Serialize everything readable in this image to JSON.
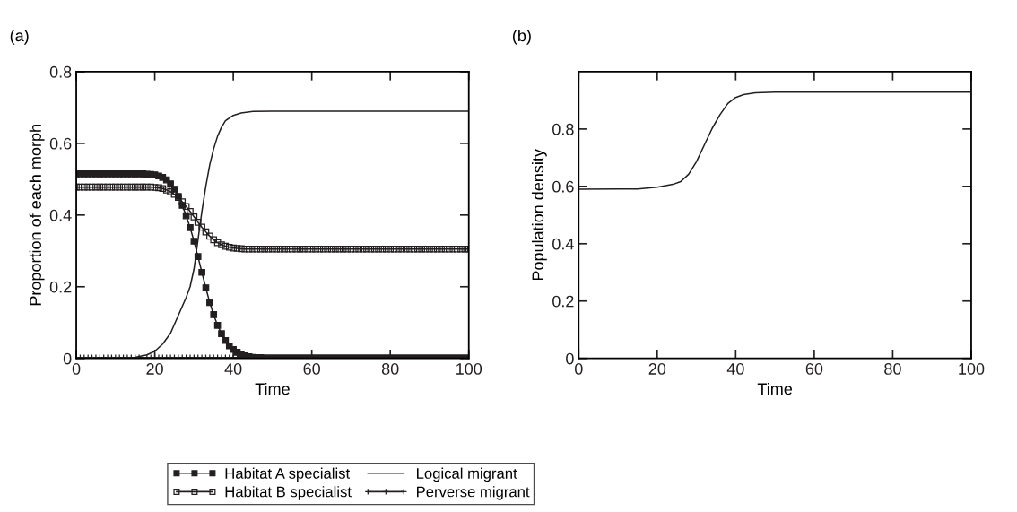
{
  "chart_data": [
    {
      "type": "line",
      "title": "(a)",
      "xlabel": "Time",
      "ylabel": "Proportion of each morph",
      "xlim": [
        0,
        100
      ],
      "ylim": [
        0,
        0.8
      ],
      "xticks": [
        0,
        20,
        40,
        60,
        80,
        100
      ],
      "yticks": [
        0,
        0.2,
        0.4,
        0.6,
        0.8
      ],
      "grid": false,
      "legend": "bottom",
      "x": [
        0,
        1,
        2,
        3,
        4,
        5,
        6,
        7,
        8,
        9,
        10,
        11,
        12,
        13,
        14,
        15,
        16,
        17,
        18,
        19,
        20,
        21,
        22,
        23,
        24,
        25,
        26,
        27,
        28,
        29,
        30,
        31,
        32,
        33,
        34,
        35,
        36,
        37,
        38,
        39,
        40,
        41,
        42,
        43,
        44,
        45,
        46,
        47,
        48,
        49,
        50,
        51,
        52,
        53,
        54,
        55,
        56,
        57,
        58,
        59,
        60,
        61,
        62,
        63,
        64,
        65,
        66,
        67,
        68,
        69,
        70,
        71,
        72,
        73,
        74,
        75,
        76,
        77,
        78,
        79,
        80,
        81,
        82,
        83,
        84,
        85,
        86,
        87,
        88,
        89,
        90,
        91,
        92,
        93,
        94,
        95,
        96,
        97,
        98,
        99,
        100
      ],
      "series": [
        {
          "name": "Habitat A specialist",
          "color": "#231f20",
          "marker": "square",
          "values": [
            0.515,
            0.515,
            0.515,
            0.515,
            0.515,
            0.515,
            0.515,
            0.515,
            0.515,
            0.515,
            0.515,
            0.515,
            0.515,
            0.515,
            0.515,
            0.515,
            0.515,
            0.515,
            0.514,
            0.513,
            0.512,
            0.509,
            0.505,
            0.498,
            0.487,
            0.472,
            0.452,
            0.427,
            0.398,
            0.365,
            0.327,
            0.284,
            0.24,
            0.197,
            0.156,
            0.122,
            0.092,
            0.069,
            0.05,
            0.035,
            0.025,
            0.017,
            0.011,
            0.007,
            0.005,
            0.003,
            0.002,
            0.002,
            0.001,
            0.001,
            0.001,
            0.001,
            0.001,
            0.001,
            0.001,
            0.001,
            0.001,
            0.001,
            0.001,
            0.001,
            0.001,
            0.001,
            0.001,
            0.001,
            0.001,
            0.001,
            0.001,
            0.001,
            0.001,
            0.001,
            0.001,
            0.001,
            0.001,
            0.001,
            0.001,
            0.001,
            0.001,
            0.001,
            0.001,
            0.001,
            0.001,
            0.001,
            0.001,
            0.001,
            0.001,
            0.001,
            0.001,
            0.001,
            0.001,
            0.001,
            0.001,
            0.001,
            0.001,
            0.001,
            0.001,
            0.001,
            0.001,
            0.001,
            0.001,
            0.001,
            0.001
          ]
        },
        {
          "name": "Habitat B specialist",
          "color": "#231f20",
          "marker": "square-open",
          "values": [
            0.478,
            0.478,
            0.478,
            0.478,
            0.478,
            0.478,
            0.478,
            0.478,
            0.478,
            0.478,
            0.478,
            0.478,
            0.478,
            0.478,
            0.478,
            0.478,
            0.478,
            0.478,
            0.478,
            0.478,
            0.477,
            0.476,
            0.474,
            0.47,
            0.465,
            0.458,
            0.449,
            0.437,
            0.424,
            0.41,
            0.395,
            0.38,
            0.366,
            0.353,
            0.341,
            0.331,
            0.323,
            0.317,
            0.313,
            0.31,
            0.308,
            0.307,
            0.306,
            0.305,
            0.305,
            0.305,
            0.305,
            0.305,
            0.305,
            0.305,
            0.305,
            0.305,
            0.305,
            0.305,
            0.305,
            0.305,
            0.305,
            0.305,
            0.305,
            0.305,
            0.305,
            0.305,
            0.305,
            0.305,
            0.305,
            0.305,
            0.305,
            0.305,
            0.305,
            0.305,
            0.305,
            0.305,
            0.305,
            0.305,
            0.305,
            0.305,
            0.305,
            0.305,
            0.305,
            0.305,
            0.305,
            0.305,
            0.305,
            0.305,
            0.305,
            0.305,
            0.305,
            0.305,
            0.305,
            0.305,
            0.305,
            0.305,
            0.305,
            0.305,
            0.305,
            0.305,
            0.305,
            0.305,
            0.305,
            0.305,
            0.305
          ]
        },
        {
          "name": "Logical migrant",
          "color": "#231f20",
          "marker": "none",
          "x": [
            0,
            10,
            15,
            18,
            20,
            22,
            24,
            26,
            28,
            29,
            30,
            31,
            32,
            33,
            34,
            35,
            36,
            37,
            38,
            40,
            42,
            45,
            50,
            100
          ],
          "values": [
            0,
            0,
            0.003,
            0.01,
            0.02,
            0.04,
            0.07,
            0.12,
            0.17,
            0.2,
            0.25,
            0.33,
            0.41,
            0.48,
            0.54,
            0.585,
            0.62,
            0.645,
            0.663,
            0.678,
            0.685,
            0.689,
            0.69,
            0.69
          ]
        },
        {
          "name": "Perverse migrant",
          "color": "#231f20",
          "marker": "cross",
          "values": [
            0.002,
            0.002,
            0.002,
            0.002,
            0.002,
            0.002,
            0.002,
            0.002,
            0.002,
            0.002,
            0.002,
            0.002,
            0.002,
            0.002,
            0.002,
            0.002,
            0.002,
            0.002,
            0.002,
            0.002,
            0.002,
            0.002,
            0.002,
            0.002,
            0.002,
            0.002,
            0.002,
            0.002,
            0.002,
            0.002,
            0.002,
            0.002,
            0.002,
            0.002,
            0.002,
            0.002,
            0.002,
            0.002,
            0.002,
            0.002,
            0.002,
            0.002,
            0.002,
            0.002,
            0.002,
            0.002,
            0.002,
            0.002,
            0.002,
            0.002,
            0.002,
            0.002,
            0.002,
            0.002,
            0.002,
            0.002,
            0.002,
            0.002,
            0.002,
            0.002,
            0.002,
            0.002,
            0.002,
            0.002,
            0.002,
            0.002,
            0.002,
            0.002,
            0.002,
            0.002,
            0.002,
            0.002,
            0.002,
            0.002,
            0.002,
            0.002,
            0.002,
            0.002,
            0.002,
            0.002,
            0.002,
            0.002,
            0.002,
            0.002,
            0.002,
            0.002,
            0.002,
            0.002,
            0.002,
            0.002,
            0.002,
            0.002,
            0.002,
            0.002,
            0.002,
            0.002,
            0.002,
            0.002,
            0.002,
            0.002,
            0.002
          ]
        }
      ]
    },
    {
      "type": "line",
      "title": "(b)",
      "xlabel": "Time",
      "ylabel": "Population density",
      "xlim": [
        0,
        100
      ],
      "ylim": [
        0,
        1
      ],
      "xticks": [
        0,
        20,
        40,
        60,
        80,
        100
      ],
      "yticks": [
        0,
        0.2,
        0.4,
        0.6,
        0.8
      ],
      "grid": false,
      "x": [
        0,
        10,
        15,
        20,
        24,
        26,
        28,
        30,
        32,
        34,
        36,
        38,
        40,
        42,
        45,
        50,
        100
      ],
      "series": [
        {
          "color": "#231f20",
          "marker": "none",
          "values": [
            0.59,
            0.591,
            0.591,
            0.597,
            0.607,
            0.617,
            0.642,
            0.686,
            0.744,
            0.802,
            0.85,
            0.889,
            0.91,
            0.92,
            0.926,
            0.929,
            0.929
          ]
        }
      ]
    }
  ]
}
